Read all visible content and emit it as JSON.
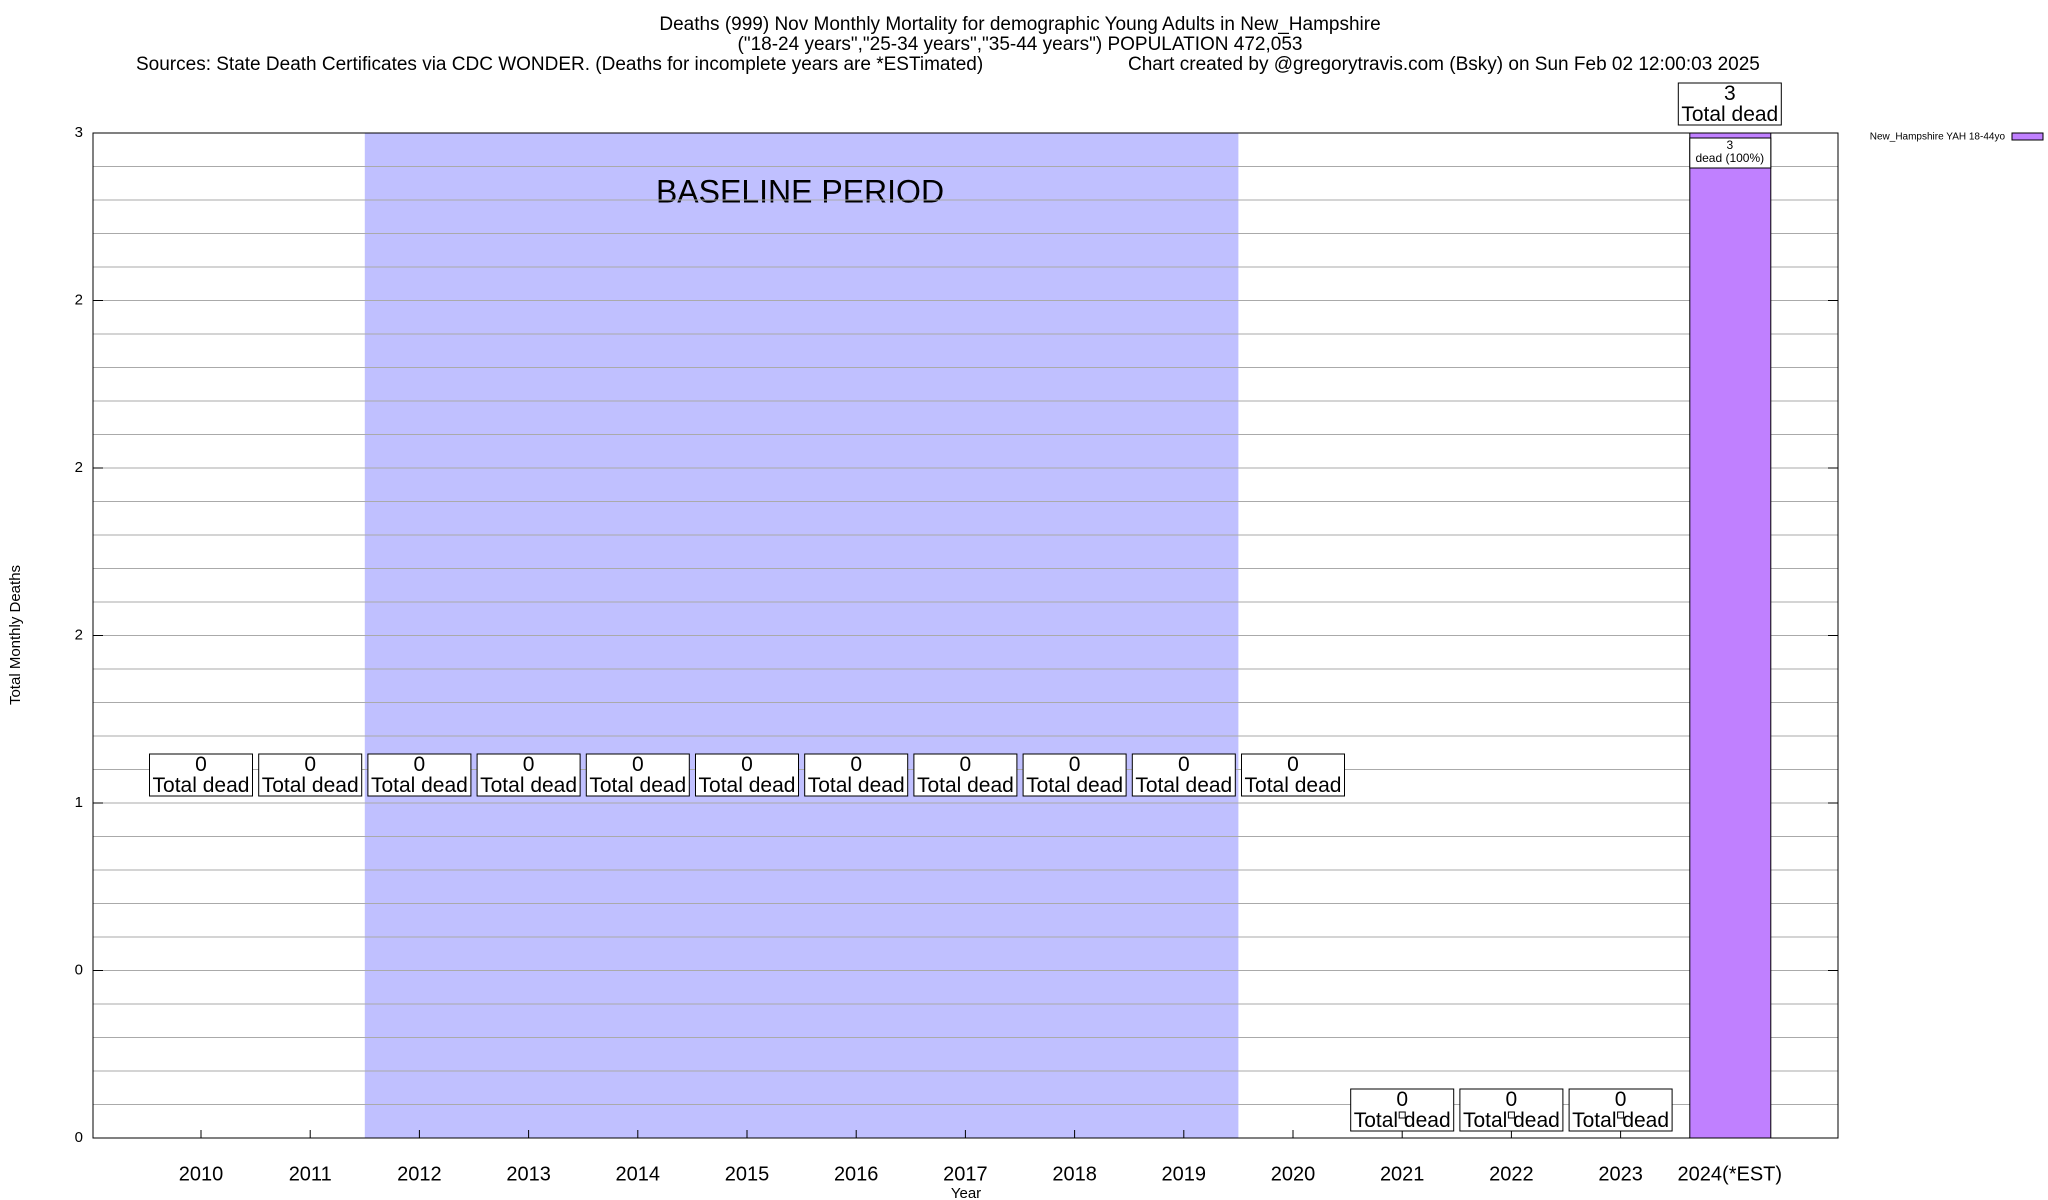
{
  "chart_data": {
    "type": "bar",
    "title": "Deaths (999) Nov Monthly Mortality for demographic Young Adults in New_Hampshire",
    "subtitle": "(\"18-24 years\",\"25-34 years\",\"35-44 years\") POPULATION 472,053",
    "sources": "Sources: State Death Certificates via CDC WONDER. (Deaths for incomplete years are *ESTimated)",
    "credit": "Chart created by @gregorytravis.com (Bsky) on Sun Feb 02 12:00:03 2025",
    "x_label": "Year",
    "y_label": "Total Monthly Deaths",
    "categories": [
      "2010",
      "2011",
      "2012",
      "2013",
      "2014",
      "2015",
      "2016",
      "2017",
      "2018",
      "2019",
      "2020",
      "2021",
      "2022",
      "2023",
      "2024(*EST)"
    ],
    "series": [
      {
        "name": "New_Hampshire YAH 18-44yo",
        "color": "#c080ff",
        "values": [
          0,
          0,
          0,
          0,
          0,
          0,
          0,
          0,
          0,
          0,
          0,
          0,
          0,
          0,
          3
        ]
      }
    ],
    "value_label_text": "Total dead",
    "inner_label_text": "dead (100%)",
    "baseline": {
      "label": "BASELINE PERIOD",
      "start": "2012",
      "end": "2019",
      "color": "#c0c0ff"
    },
    "ylim": [
      0,
      3
    ],
    "yticks": [
      0,
      {
        "value": 0.5,
        "label": "0"
      },
      1,
      {
        "value": 1.5,
        "label": "2"
      },
      2,
      {
        "value": 2.5,
        "label": "2"
      },
      3
    ],
    "y_minor_ticks": [
      0.1,
      0.2,
      0.3,
      0.4,
      0.6,
      0.7,
      0.8,
      0.9,
      1.1,
      1.2,
      1.3,
      1.4,
      1.6,
      1.7,
      1.8,
      1.9,
      2.1,
      2.2,
      2.3,
      2.4,
      2.6,
      2.7,
      2.8,
      2.9
    ],
    "grid": true,
    "legend": "top-right"
  }
}
